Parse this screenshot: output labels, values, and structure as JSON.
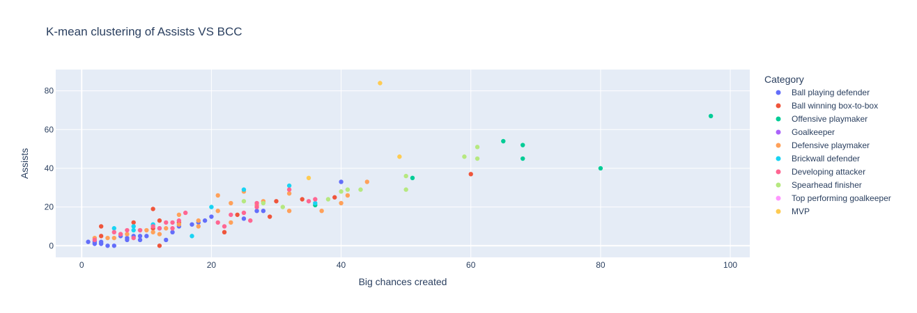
{
  "chart_data": {
    "type": "scatter",
    "title": "K-mean clustering of Assists VS BCC",
    "xlabel": "Big chances created",
    "ylabel": "Assists",
    "xlim": [
      -4,
      103
    ],
    "ylim": [
      -6,
      91
    ],
    "xticks": [
      0,
      20,
      40,
      60,
      80,
      100
    ],
    "yticks": [
      0,
      20,
      40,
      60,
      80
    ],
    "grid": true,
    "legend": {
      "title": "Category",
      "placement": "right"
    },
    "series": [
      {
        "name": "Ball playing defender",
        "color": "#636efa",
        "points": [
          [
            1,
            2
          ],
          [
            2,
            1
          ],
          [
            2,
            2
          ],
          [
            3,
            1
          ],
          [
            3,
            2
          ],
          [
            4,
            0
          ],
          [
            5,
            0
          ],
          [
            6,
            5
          ],
          [
            7,
            3
          ],
          [
            7,
            4
          ],
          [
            8,
            5
          ],
          [
            9,
            3
          ],
          [
            9,
            5
          ],
          [
            10,
            5
          ],
          [
            12,
            9
          ],
          [
            13,
            3
          ],
          [
            14,
            7
          ],
          [
            15,
            10
          ],
          [
            17,
            11
          ],
          [
            18,
            12
          ],
          [
            19,
            13
          ],
          [
            20,
            15
          ],
          [
            25,
            14
          ],
          [
            27,
            18
          ],
          [
            28,
            18
          ],
          [
            40,
            33
          ]
        ]
      },
      {
        "name": "Ball winning box-to-box",
        "color": "#ef553b",
        "points": [
          [
            3,
            10
          ],
          [
            3,
            5
          ],
          [
            8,
            12
          ],
          [
            11,
            19
          ],
          [
            11,
            9
          ],
          [
            12,
            13
          ],
          [
            12,
            0
          ],
          [
            15,
            12
          ],
          [
            22,
            7
          ],
          [
            24,
            16
          ],
          [
            29,
            15
          ],
          [
            30,
            23
          ],
          [
            34,
            24
          ],
          [
            39,
            25
          ],
          [
            60,
            37
          ]
        ]
      },
      {
        "name": "Offensive playmaker",
        "color": "#00cc96",
        "points": [
          [
            36,
            21
          ],
          [
            51,
            35
          ],
          [
            65,
            54
          ],
          [
            68,
            52
          ],
          [
            68,
            45
          ],
          [
            80,
            40
          ],
          [
            97,
            67
          ]
        ]
      },
      {
        "name": "Goalkeeper",
        "color": "#ab63fa",
        "points": []
      },
      {
        "name": "Defensive playmaker",
        "color": "#ffa15a",
        "points": [
          [
            2,
            4
          ],
          [
            4,
            4
          ],
          [
            5,
            4
          ],
          [
            6,
            6
          ],
          [
            7,
            6
          ],
          [
            9,
            8
          ],
          [
            10,
            8
          ],
          [
            11,
            7
          ],
          [
            12,
            6
          ],
          [
            13,
            9
          ],
          [
            15,
            16
          ],
          [
            15,
            11
          ],
          [
            18,
            10
          ],
          [
            18,
            13
          ],
          [
            21,
            18
          ],
          [
            21,
            26
          ],
          [
            23,
            22
          ],
          [
            23,
            12
          ],
          [
            25,
            28
          ],
          [
            27,
            21
          ],
          [
            28,
            23
          ],
          [
            32,
            27
          ],
          [
            32,
            18
          ],
          [
            37,
            18
          ],
          [
            40,
            22
          ],
          [
            41,
            26
          ],
          [
            44,
            33
          ]
        ]
      },
      {
        "name": "Brickwall defender",
        "color": "#19d3f3",
        "points": [
          [
            5,
            9
          ],
          [
            8,
            8
          ],
          [
            8,
            10
          ],
          [
            11,
            11
          ],
          [
            17,
            5
          ],
          [
            20,
            20
          ],
          [
            25,
            29
          ],
          [
            32,
            31
          ],
          [
            36,
            22
          ]
        ]
      },
      {
        "name": "Developing attacker",
        "color": "#ff6692",
        "points": [
          [
            2,
            3
          ],
          [
            5,
            7
          ],
          [
            6,
            6
          ],
          [
            7,
            8
          ],
          [
            8,
            4
          ],
          [
            9,
            8
          ],
          [
            11,
            10
          ],
          [
            12,
            9
          ],
          [
            13,
            12
          ],
          [
            14,
            9
          ],
          [
            14,
            12
          ],
          [
            15,
            13
          ],
          [
            16,
            17
          ],
          [
            21,
            12
          ],
          [
            22,
            10
          ],
          [
            23,
            16
          ],
          [
            25,
            17
          ],
          [
            26,
            13
          ],
          [
            27,
            20
          ],
          [
            27,
            22
          ],
          [
            32,
            29
          ],
          [
            35,
            23
          ],
          [
            36,
            24
          ]
        ]
      },
      {
        "name": "Spearhead finisher",
        "color": "#b6e880",
        "points": [
          [
            25,
            23
          ],
          [
            28,
            22
          ],
          [
            31,
            20
          ],
          [
            38,
            24
          ],
          [
            40,
            28
          ],
          [
            41,
            29
          ],
          [
            43,
            29
          ],
          [
            50,
            36
          ],
          [
            50,
            29
          ],
          [
            59,
            46
          ],
          [
            61,
            51
          ],
          [
            61,
            45
          ]
        ]
      },
      {
        "name": "Top performing goalkeeper",
        "color": "#ff97ff",
        "points": []
      },
      {
        "name": "MVP",
        "color": "#fecb52",
        "points": [
          [
            35,
            35
          ],
          [
            46,
            84
          ],
          [
            49,
            46
          ]
        ]
      }
    ]
  }
}
